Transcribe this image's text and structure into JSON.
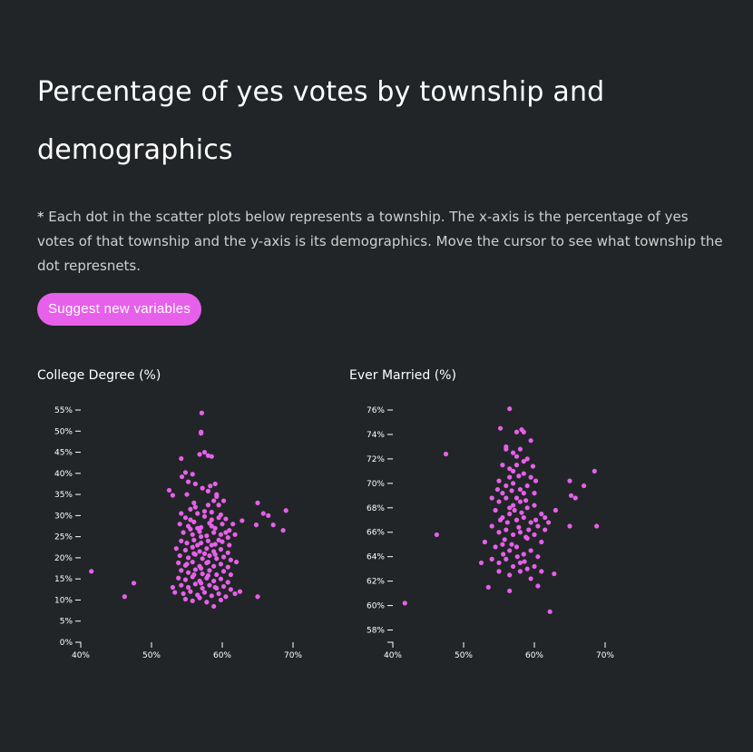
{
  "page": {
    "title": "Percentage of yes votes by township and demographics",
    "note_star": "*",
    "note": "Each dot in the scatter plots below represents a township. The x-axis is the percentage of yes votes of that township and the y-axis is its demographics. Move the cursor to see what township the dot represnets.",
    "button_label": "Suggest new variables",
    "accent_color": "#e760ea",
    "background_color": "#222527"
  },
  "chart_data": [
    {
      "type": "scatter",
      "title": "College Degree (%)",
      "xlabel": "",
      "ylabel": "",
      "xlim": [
        40,
        70
      ],
      "ylim": [
        0,
        55
      ],
      "x_ticks": [
        40,
        50,
        60,
        70
      ],
      "x_tick_labels": [
        "40%",
        "50%",
        "60%",
        "70%"
      ],
      "y_ticks": [
        0,
        5,
        10,
        15,
        20,
        25,
        30,
        35,
        40,
        45,
        50,
        55
      ],
      "y_tick_labels": [
        "0%",
        "5%",
        "10%",
        "15%",
        "20%",
        "25%",
        "30%",
        "35%",
        "40%",
        "45%",
        "50%",
        "55%"
      ],
      "points": [
        [
          41.5,
          16.8
        ],
        [
          46.2,
          10.8
        ],
        [
          47.5,
          14.0
        ],
        [
          52.5,
          36.0
        ],
        [
          53.0,
          34.8
        ],
        [
          53.0,
          13.0
        ],
        [
          53.3,
          11.8
        ],
        [
          54.2,
          43.5
        ],
        [
          54.3,
          39.2
        ],
        [
          54.8,
          40.2
        ],
        [
          55.2,
          38.0
        ],
        [
          55.8,
          39.8
        ],
        [
          56.2,
          37.5
        ],
        [
          56.8,
          44.5
        ],
        [
          57.0,
          49.5
        ],
        [
          57.0,
          49.8
        ],
        [
          57.1,
          54.3
        ],
        [
          57.5,
          45.0
        ],
        [
          58.0,
          44.2
        ],
        [
          58.5,
          44.0
        ],
        [
          58.3,
          37.0
        ],
        [
          59.0,
          37.5
        ],
        [
          59.2,
          35.0
        ],
        [
          58.0,
          35.8
        ],
        [
          57.2,
          36.5
        ],
        [
          56.0,
          33.0
        ],
        [
          55.0,
          35.0
        ],
        [
          58.8,
          33.5
        ],
        [
          59.2,
          34.5
        ],
        [
          60.2,
          33.5
        ],
        [
          59.5,
          32.5
        ],
        [
          58.0,
          32.5
        ],
        [
          54.2,
          30.5
        ],
        [
          54.8,
          29.5
        ],
        [
          55.5,
          31.5
        ],
        [
          56.5,
          30.5
        ],
        [
          57.5,
          29.8
        ],
        [
          58.5,
          30.8
        ],
        [
          59.5,
          29.5
        ],
        [
          60.5,
          29.2
        ],
        [
          61.5,
          28.0
        ],
        [
          62.8,
          28.8
        ],
        [
          65.0,
          33.0
        ],
        [
          65.8,
          30.5
        ],
        [
          66.5,
          30.0
        ],
        [
          64.8,
          27.8
        ],
        [
          67.2,
          27.8
        ],
        [
          68.6,
          26.5
        ],
        [
          69.0,
          31.2
        ],
        [
          54.0,
          28.0
        ],
        [
          55.2,
          27.5
        ],
        [
          56.0,
          28.5
        ],
        [
          57.0,
          27.2
        ],
        [
          58.2,
          28.2
        ],
        [
          59.0,
          27.0
        ],
        [
          60.0,
          28.0
        ],
        [
          61.0,
          26.5
        ],
        [
          54.5,
          26.0
        ],
        [
          55.8,
          25.5
        ],
        [
          56.8,
          26.2
        ],
        [
          57.8,
          25.2
        ],
        [
          58.8,
          26.0
        ],
        [
          59.8,
          25.5
        ],
        [
          60.8,
          24.8
        ],
        [
          61.8,
          25.5
        ],
        [
          54.2,
          24.0
        ],
        [
          55.0,
          23.5
        ],
        [
          56.0,
          24.2
        ],
        [
          57.0,
          23.5
        ],
        [
          58.0,
          24.0
        ],
        [
          59.0,
          23.2
        ],
        [
          60.0,
          23.8
        ],
        [
          61.0,
          23.0
        ],
        [
          53.5,
          22.2
        ],
        [
          54.8,
          21.8
        ],
        [
          55.8,
          22.5
        ],
        [
          56.8,
          21.5
        ],
        [
          57.8,
          22.2
        ],
        [
          58.8,
          21.5
        ],
        [
          59.8,
          22.0
        ],
        [
          60.8,
          21.2
        ],
        [
          54.0,
          20.5
        ],
        [
          55.2,
          20.0
        ],
        [
          56.2,
          20.8
        ],
        [
          57.2,
          19.8
        ],
        [
          58.2,
          20.5
        ],
        [
          59.2,
          19.8
        ],
        [
          60.2,
          20.2
        ],
        [
          61.2,
          19.5
        ],
        [
          62.0,
          19.0
        ],
        [
          53.8,
          18.8
        ],
        [
          54.8,
          18.2
        ],
        [
          55.8,
          19.0
        ],
        [
          56.8,
          18.0
        ],
        [
          57.8,
          18.8
        ],
        [
          58.8,
          18.0
        ],
        [
          59.8,
          18.5
        ],
        [
          60.8,
          17.8
        ],
        [
          54.2,
          17.0
        ],
        [
          55.2,
          16.5
        ],
        [
          56.2,
          17.2
        ],
        [
          57.2,
          16.2
        ],
        [
          58.2,
          17.0
        ],
        [
          59.2,
          16.0
        ],
        [
          60.2,
          16.8
        ],
        [
          61.2,
          16.0
        ],
        [
          53.8,
          15.2
        ],
        [
          54.8,
          14.8
        ],
        [
          55.8,
          15.5
        ],
        [
          56.8,
          14.5
        ],
        [
          57.8,
          15.2
        ],
        [
          58.8,
          14.5
        ],
        [
          59.8,
          15.0
        ],
        [
          60.8,
          14.2
        ],
        [
          54.2,
          13.5
        ],
        [
          55.2,
          13.0
        ],
        [
          56.2,
          13.8
        ],
        [
          57.2,
          12.8
        ],
        [
          58.2,
          13.5
        ],
        [
          59.2,
          12.8
        ],
        [
          60.2,
          13.2
        ],
        [
          61.2,
          12.5
        ],
        [
          62.5,
          12.0
        ],
        [
          61.8,
          11.5
        ],
        [
          54.5,
          11.5
        ],
        [
          55.5,
          12.0
        ],
        [
          56.5,
          11.2
        ],
        [
          57.5,
          11.8
        ],
        [
          58.5,
          11.0
        ],
        [
          59.5,
          11.5
        ],
        [
          60.5,
          10.8
        ],
        [
          54.8,
          10.2
        ],
        [
          55.8,
          9.8
        ],
        [
          56.8,
          10.5
        ],
        [
          57.8,
          9.5
        ],
        [
          58.8,
          8.5
        ],
        [
          59.8,
          10.0
        ],
        [
          65.0,
          10.8
        ],
        [
          56.0,
          21.0
        ],
        [
          57.5,
          21.0
        ],
        [
          58.5,
          23.0
        ],
        [
          57.0,
          25.0
        ],
        [
          56.5,
          27.0
        ],
        [
          55.5,
          29.0
        ],
        [
          58.0,
          19.0
        ],
        [
          57.0,
          17.5
        ],
        [
          56.0,
          16.0
        ],
        [
          58.0,
          15.8
        ],
        [
          59.0,
          13.0
        ],
        [
          57.0,
          14.0
        ],
        [
          55.5,
          26.8
        ],
        [
          58.5,
          27.5
        ],
        [
          59.5,
          24.2
        ],
        [
          56.5,
          23.0
        ],
        [
          55.0,
          18.5
        ],
        [
          60.5,
          26.0
        ],
        [
          59.0,
          20.8
        ],
        [
          57.5,
          31.0
        ],
        [
          58.5,
          29.0
        ],
        [
          56.2,
          32.0
        ],
        [
          59.8,
          30.2
        ]
      ]
    },
    {
      "type": "scatter",
      "title": "Ever Married (%)",
      "xlabel": "",
      "ylabel": "",
      "xlim": [
        40,
        70
      ],
      "ylim": [
        57,
        76
      ],
      "x_ticks": [
        40,
        50,
        60,
        70
      ],
      "x_tick_labels": [
        "40%",
        "50%",
        "60%",
        "70%"
      ],
      "y_ticks": [
        58,
        60,
        62,
        64,
        66,
        68,
        70,
        72,
        74,
        76
      ],
      "y_tick_labels": [
        "58%",
        "60%",
        "62%",
        "64%",
        "66%",
        "68%",
        "70%",
        "72%",
        "74%",
        "76%"
      ],
      "points": [
        [
          41.7,
          60.2
        ],
        [
          46.2,
          65.8
        ],
        [
          47.5,
          72.4
        ],
        [
          55.2,
          74.5
        ],
        [
          56.5,
          76.1
        ],
        [
          57.5,
          74.2
        ],
        [
          58.2,
          74.4
        ],
        [
          58.5,
          74.2
        ],
        [
          59.5,
          73.5
        ],
        [
          56.0,
          72.8
        ],
        [
          57.0,
          72.5
        ],
        [
          58.0,
          72.8
        ],
        [
          59.0,
          72.0
        ],
        [
          55.5,
          71.5
        ],
        [
          56.5,
          71.2
        ],
        [
          57.5,
          71.5
        ],
        [
          58.5,
          70.8
        ],
        [
          59.5,
          70.5
        ],
        [
          55.0,
          70.2
        ],
        [
          56.0,
          69.8
        ],
        [
          57.0,
          70.0
        ],
        [
          58.0,
          69.5
        ],
        [
          59.0,
          69.8
        ],
        [
          60.0,
          69.2
        ],
        [
          54.0,
          68.8
        ],
        [
          55.0,
          68.5
        ],
        [
          56.0,
          68.8
        ],
        [
          57.0,
          68.2
        ],
        [
          58.0,
          68.5
        ],
        [
          59.0,
          68.0
        ],
        [
          60.0,
          68.2
        ],
        [
          61.0,
          67.5
        ],
        [
          54.5,
          67.8
        ],
        [
          55.5,
          67.2
        ],
        [
          56.5,
          67.5
        ],
        [
          57.5,
          67.0
        ],
        [
          58.5,
          67.2
        ],
        [
          59.5,
          66.8
        ],
        [
          60.5,
          66.5
        ],
        [
          61.5,
          66.2
        ],
        [
          54.0,
          66.5
        ],
        [
          55.0,
          66.0
        ],
        [
          56.0,
          66.2
        ],
        [
          57.0,
          65.8
        ],
        [
          58.0,
          66.0
        ],
        [
          59.0,
          65.5
        ],
        [
          60.0,
          65.8
        ],
        [
          61.0,
          65.2
        ],
        [
          53.0,
          65.2
        ],
        [
          54.5,
          64.8
        ],
        [
          55.5,
          65.0
        ],
        [
          56.5,
          64.5
        ],
        [
          57.5,
          64.8
        ],
        [
          58.5,
          64.2
        ],
        [
          59.5,
          64.5
        ],
        [
          60.5,
          64.0
        ],
        [
          54.0,
          63.8
        ],
        [
          55.0,
          63.5
        ],
        [
          56.0,
          63.8
        ],
        [
          57.0,
          63.2
        ],
        [
          58.0,
          63.5
        ],
        [
          59.0,
          63.0
        ],
        [
          60.0,
          63.2
        ],
        [
          52.5,
          63.5
        ],
        [
          55.0,
          62.8
        ],
        [
          56.5,
          62.5
        ],
        [
          58.0,
          62.8
        ],
        [
          59.5,
          62.2
        ],
        [
          53.5,
          61.5
        ],
        [
          56.5,
          61.2
        ],
        [
          60.5,
          61.6
        ],
        [
          62.2,
          59.5
        ],
        [
          61.0,
          62.8
        ],
        [
          62.8,
          62.6
        ],
        [
          61.5,
          67.2
        ],
        [
          62.0,
          66.8
        ],
        [
          63.0,
          67.8
        ],
        [
          65.0,
          70.2
        ],
        [
          65.2,
          69.0
        ],
        [
          65.8,
          68.8
        ],
        [
          65.0,
          66.5
        ],
        [
          67.0,
          69.8
        ],
        [
          68.5,
          71.0
        ],
        [
          68.8,
          66.5
        ],
        [
          56.0,
          73.0
        ],
        [
          57.5,
          72.2
        ],
        [
          58.5,
          71.8
        ],
        [
          57.0,
          71.0
        ],
        [
          56.5,
          70.5
        ],
        [
          58.5,
          69.2
        ],
        [
          57.5,
          68.8
        ],
        [
          56.5,
          68.0
        ],
        [
          55.5,
          69.2
        ],
        [
          57.2,
          67.8
        ],
        [
          58.2,
          67.6
        ],
        [
          56.2,
          66.8
        ],
        [
          57.8,
          66.4
        ],
        [
          58.8,
          65.6
        ],
        [
          55.8,
          65.4
        ],
        [
          56.8,
          65.0
        ],
        [
          57.6,
          64.0
        ],
        [
          58.6,
          63.6
        ],
        [
          55.6,
          64.2
        ],
        [
          59.2,
          66.2
        ],
        [
          60.2,
          67.0
        ],
        [
          55.2,
          67.0
        ],
        [
          54.8,
          69.5
        ],
        [
          60.2,
          70.2
        ],
        [
          59.8,
          71.4
        ],
        [
          56.8,
          69.4
        ],
        [
          57.8,
          70.6
        ],
        [
          58.8,
          68.6
        ]
      ]
    }
  ]
}
